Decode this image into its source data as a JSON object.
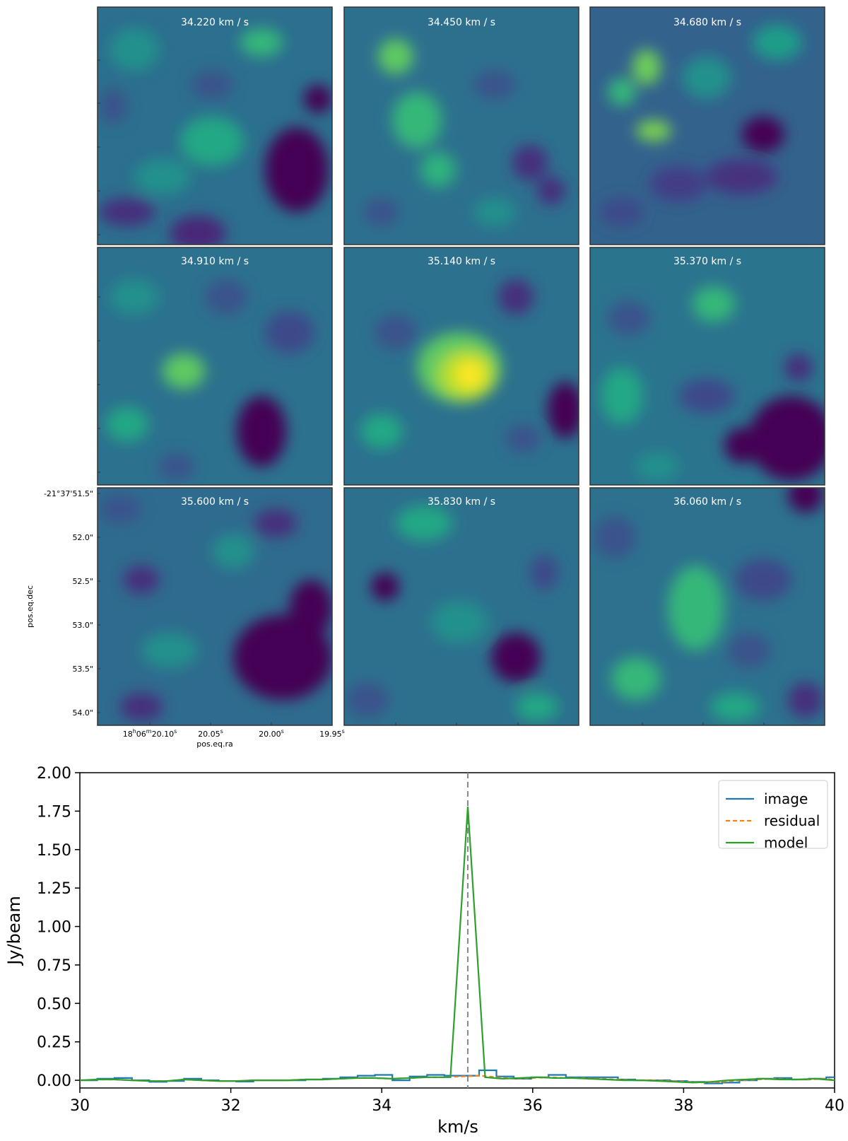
{
  "channel_maps": {
    "panels": [
      {
        "label": "34.220 km / s"
      },
      {
        "label": "34.450 km / s"
      },
      {
        "label": "34.680 km / s"
      },
      {
        "label": "34.910 km / s"
      },
      {
        "label": "35.140 km / s"
      },
      {
        "label": "35.370 km / s"
      },
      {
        "label": "35.600 km / s"
      },
      {
        "label": "35.830 km / s"
      },
      {
        "label": "36.060 km / s"
      }
    ],
    "colormap": [
      "#440154",
      "#3b528b",
      "#21918c",
      "#5ec962",
      "#fde725"
    ],
    "dec_ticks": [
      "-21°37'51.5\"",
      "52.0\"",
      "52.5\"",
      "53.0\"",
      "53.5\"",
      "54.0\""
    ],
    "ra_ticks": [
      {
        "main": "18",
        "h": "h",
        "mid": "06",
        "m": "m",
        "sec": "20.10",
        "s": "s"
      },
      {
        "main": "",
        "h": "",
        "mid": "",
        "m": "",
        "sec": "20.05",
        "s": "s"
      },
      {
        "main": "",
        "h": "",
        "mid": "",
        "m": "",
        "sec": "20.00",
        "s": "s"
      },
      {
        "main": "",
        "h": "",
        "mid": "",
        "m": "",
        "sec": "19.95",
        "s": "s"
      }
    ],
    "xlabel": "pos.eq.ra",
    "ylabel": "pos.eq.dec"
  },
  "chart_data": {
    "type": "line",
    "xlabel": "km/s",
    "ylabel": "Jy/beam",
    "xlim": [
      30,
      40
    ],
    "ylim": [
      -0.05,
      2.0
    ],
    "xticks": [
      "30",
      "32",
      "34",
      "36",
      "38",
      "40"
    ],
    "yticks": [
      "0.00",
      "0.25",
      "0.50",
      "0.75",
      "1.00",
      "1.25",
      "1.50",
      "1.75",
      "2.00"
    ],
    "vline": 35.14,
    "legend_position": "upper right",
    "series": [
      {
        "name": "image",
        "color": "#1f77b4",
        "style": "steps",
        "x": [
          30.0,
          30.23,
          30.46,
          30.69,
          30.92,
          31.15,
          31.38,
          31.61,
          31.84,
          32.07,
          32.3,
          32.53,
          32.76,
          32.99,
          33.22,
          33.45,
          33.68,
          33.91,
          34.14,
          34.37,
          34.6,
          34.83,
          35.06,
          35.29,
          35.52,
          35.75,
          35.98,
          36.21,
          36.44,
          36.67,
          36.9,
          37.13,
          37.36,
          37.59,
          37.82,
          38.05,
          38.28,
          38.51,
          38.74,
          38.97,
          39.2,
          39.43,
          39.66,
          39.89
        ],
        "y": [
          0.0,
          0.01,
          0.015,
          0.0,
          -0.01,
          -0.005,
          0.01,
          0.0,
          -0.005,
          -0.008,
          0.0,
          0.0,
          0.0,
          0.005,
          0.01,
          0.02,
          0.03,
          0.035,
          0.0,
          0.025,
          0.035,
          0.03,
          0.03,
          0.065,
          0.025,
          0.01,
          0.02,
          0.035,
          0.02,
          0.02,
          0.02,
          0.005,
          0.0,
          0.0,
          -0.005,
          -0.01,
          -0.02,
          -0.015,
          0.0,
          0.01,
          0.015,
          0.005,
          0.01,
          0.02
        ]
      },
      {
        "name": "residual",
        "color": "#ff7f0e",
        "style": "dashed",
        "x": [
          30.0,
          30.23,
          30.46,
          30.69,
          30.92,
          31.15,
          31.38,
          31.61,
          31.84,
          32.07,
          32.3,
          32.53,
          32.76,
          32.99,
          33.22,
          33.45,
          33.68,
          33.91,
          34.14,
          34.37,
          34.6,
          34.83,
          35.06,
          35.29,
          35.52,
          35.75,
          35.98,
          36.21,
          36.44,
          36.67,
          36.9,
          37.13,
          37.36,
          37.59,
          37.82,
          38.05,
          38.28,
          38.51,
          38.74,
          38.97,
          39.2,
          39.43,
          39.66,
          39.89,
          40.0
        ],
        "y": [
          0.0,
          0.005,
          0.005,
          0.0,
          -0.005,
          -0.005,
          0.005,
          0.0,
          -0.005,
          -0.005,
          0.0,
          0.0,
          0.0,
          0.005,
          0.005,
          0.01,
          0.015,
          0.015,
          0.01,
          0.015,
          0.02,
          0.02,
          0.025,
          0.03,
          0.02,
          0.01,
          0.015,
          0.02,
          0.015,
          0.015,
          0.01,
          0.005,
          0.0,
          0.0,
          -0.005,
          -0.01,
          -0.015,
          -0.01,
          0.0,
          0.005,
          0.01,
          0.005,
          0.005,
          0.01,
          0.0
        ]
      },
      {
        "name": "model",
        "color": "#2ca02c",
        "style": "solid",
        "x": [
          30.0,
          30.23,
          30.46,
          30.69,
          30.92,
          31.15,
          31.38,
          31.61,
          31.84,
          32.07,
          32.3,
          32.53,
          32.76,
          32.99,
          33.22,
          33.45,
          33.68,
          33.91,
          34.14,
          34.37,
          34.6,
          34.83,
          34.91,
          35.14,
          35.37,
          35.6,
          35.83,
          36.06,
          36.29,
          36.52,
          36.75,
          36.98,
          37.21,
          37.44,
          37.67,
          37.9,
          38.13,
          38.36,
          38.59,
          38.82,
          39.05,
          39.28,
          39.51,
          39.74,
          40.0
        ],
        "y": [
          0.0,
          0.005,
          0.005,
          0.0,
          -0.005,
          -0.005,
          0.005,
          0.0,
          -0.005,
          -0.005,
          0.0,
          0.0,
          0.0,
          0.005,
          0.005,
          0.01,
          0.015,
          0.015,
          0.01,
          0.015,
          0.02,
          0.02,
          0.02,
          1.78,
          0.02,
          0.01,
          0.015,
          0.02,
          0.015,
          0.015,
          0.01,
          0.005,
          0.0,
          0.0,
          -0.005,
          -0.01,
          -0.015,
          -0.01,
          0.0,
          0.005,
          0.01,
          0.005,
          0.005,
          0.01,
          0.0
        ]
      }
    ]
  }
}
